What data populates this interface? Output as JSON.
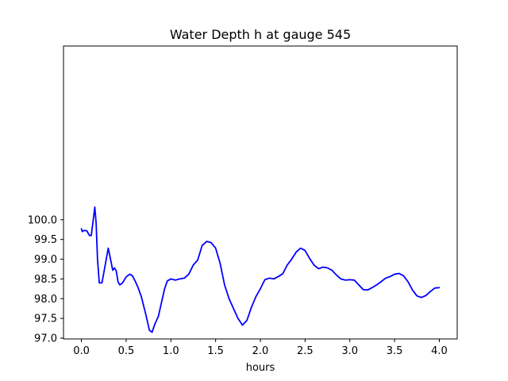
{
  "chart_data": {
    "type": "line",
    "title": "Water Depth h at gauge 545",
    "xlabel": "hours",
    "ylabel": "",
    "xlim": [
      -0.2,
      4.2
    ],
    "ylim": [
      96.98,
      104.4
    ],
    "grid": false,
    "x_ticks": [
      0.0,
      0.5,
      1.0,
      1.5,
      2.0,
      2.5,
      3.0,
      3.5,
      4.0
    ],
    "x_tick_labels": [
      "0.0",
      "0.5",
      "1.0",
      "1.5",
      "2.0",
      "2.5",
      "3.0",
      "3.5",
      "4.0"
    ],
    "y_ticks": [
      97.0,
      97.5,
      98.0,
      98.5,
      99.0,
      99.5,
      100.0
    ],
    "y_tick_labels": [
      "97.0",
      "97.5",
      "98.0",
      "98.5",
      "99.0",
      "99.5",
      "100.0"
    ],
    "series": [
      {
        "color": "#0000ff",
        "x": [
          0.0,
          0.01,
          0.03,
          0.06,
          0.09,
          0.11,
          0.13,
          0.15,
          0.165,
          0.18,
          0.2,
          0.23,
          0.27,
          0.3,
          0.33,
          0.35,
          0.37,
          0.39,
          0.41,
          0.43,
          0.46,
          0.5,
          0.54,
          0.57,
          0.6,
          0.63,
          0.67,
          0.72,
          0.76,
          0.79,
          0.82,
          0.86,
          0.9,
          0.93,
          0.96,
          1.0,
          1.05,
          1.1,
          1.15,
          1.2,
          1.25,
          1.3,
          1.35,
          1.4,
          1.45,
          1.5,
          1.55,
          1.6,
          1.65,
          1.7,
          1.75,
          1.8,
          1.85,
          1.9,
          1.95,
          2.0,
          2.05,
          2.1,
          2.15,
          2.2,
          2.25,
          2.3,
          2.35,
          2.4,
          2.45,
          2.5,
          2.55,
          2.6,
          2.65,
          2.7,
          2.75,
          2.8,
          2.85,
          2.9,
          2.95,
          3.0,
          3.05,
          3.1,
          3.15,
          3.2,
          3.25,
          3.3,
          3.35,
          3.4,
          3.45,
          3.5,
          3.55,
          3.6,
          3.65,
          3.7,
          3.75,
          3.8,
          3.85,
          3.9,
          3.95,
          4.0
        ],
        "y": [
          99.77,
          99.7,
          99.73,
          99.72,
          99.6,
          99.6,
          99.95,
          100.32,
          99.9,
          99.0,
          98.4,
          98.4,
          98.9,
          99.28,
          98.95,
          98.72,
          98.78,
          98.7,
          98.42,
          98.35,
          98.4,
          98.55,
          98.62,
          98.58,
          98.45,
          98.3,
          98.05,
          97.6,
          97.2,
          97.15,
          97.35,
          97.55,
          97.95,
          98.25,
          98.45,
          98.5,
          98.47,
          98.5,
          98.52,
          98.62,
          98.85,
          98.98,
          99.35,
          99.45,
          99.42,
          99.28,
          98.9,
          98.35,
          98.0,
          97.75,
          97.5,
          97.33,
          97.45,
          97.78,
          98.05,
          98.25,
          98.48,
          98.52,
          98.5,
          98.56,
          98.63,
          98.85,
          99.0,
          99.18,
          99.28,
          99.22,
          99.02,
          98.85,
          98.76,
          98.8,
          98.78,
          98.72,
          98.6,
          98.5,
          98.47,
          98.48,
          98.47,
          98.35,
          98.23,
          98.22,
          98.28,
          98.35,
          98.43,
          98.52,
          98.56,
          98.62,
          98.64,
          98.58,
          98.43,
          98.22,
          98.07,
          98.03,
          98.08,
          98.18,
          98.27,
          98.28
        ]
      }
    ]
  }
}
